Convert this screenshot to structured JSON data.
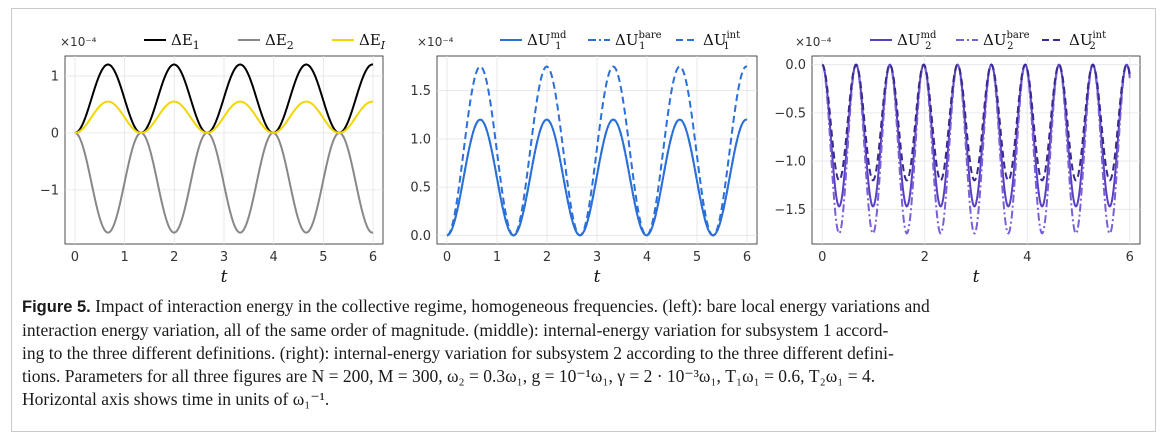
{
  "figure": {
    "caption_label": "Figure 5.",
    "caption_lines": [
      "Impact of interaction energy in the collective regime, homogeneous frequencies. (left): bare local energy variations and",
      "interaction energy variation, all of the same order of magnitude. (middle): internal-energy variation for subsystem 1 accord-",
      "ing to the three different definitions. (right): internal-energy variation for subsystem 2 according to the three different defini-",
      "tions. Parameters for all three figures are N = 200, M = 300, ω₂ = 0.3ω₁, g = 10⁻¹ω₁, γ = 2 · 10⁻³ω₁, T₁ω₁ = 0.6, T₂ω₁ = 4.",
      "Horizontal axis shows time in units of ω₁⁻¹."
    ]
  },
  "chart_data": [
    {
      "type": "line",
      "panel": "left",
      "xlabel": "t",
      "ylabel": "",
      "multiplier": "×10⁻⁴",
      "xlim": [
        -0.2,
        6.2
      ],
      "ylim": [
        -1.95,
        1.35
      ],
      "xticks": [
        0,
        1,
        2,
        3,
        4,
        5,
        6
      ],
      "yticks": [
        -1,
        0,
        1
      ],
      "grid": true,
      "legend_position": "top",
      "period": 1.33,
      "series": [
        {
          "name": "ΔE₁",
          "color": "#000000",
          "dash": "solid",
          "min": 0,
          "max": 1.2,
          "shape": "rise"
        },
        {
          "name": "ΔE₂",
          "color": "#888888",
          "dash": "solid",
          "min": -1.75,
          "max": 0,
          "shape": "fall"
        },
        {
          "name": "ΔE_I",
          "color": "#f2d600",
          "dash": "solid",
          "min": 0,
          "max": 0.55,
          "shape": "rise"
        }
      ],
      "legend_items": [
        "ΔE",
        "1",
        "ΔE",
        "2",
        "ΔE",
        "I"
      ]
    },
    {
      "type": "line",
      "panel": "middle",
      "xlabel": "t",
      "ylabel": "",
      "multiplier": "×10⁻⁴",
      "xlim": [
        -0.2,
        6.2
      ],
      "ylim": [
        -0.09,
        1.86
      ],
      "xticks": [
        0,
        1,
        2,
        3,
        4,
        5,
        6
      ],
      "yticks": [
        0.0,
        0.5,
        1.0,
        1.5
      ],
      "ytick_labels": [
        "0.0",
        "0.5",
        "1.0",
        "1.5"
      ],
      "grid": true,
      "legend_position": "top",
      "period": 1.33,
      "series": [
        {
          "name": "ΔU₁^md",
          "color": "#2b6fd8",
          "dash": "solid",
          "min": 0,
          "max": 1.2,
          "shape": "rise"
        },
        {
          "name": "ΔU₁^bare",
          "color": "#2b6fd8",
          "dash": "dashdot",
          "min": 0,
          "max": 1.2,
          "shape": "rise"
        },
        {
          "name": "ΔU₁^int",
          "color": "#2b6fd8",
          "dash": "dashed",
          "min": 0,
          "max": 1.75,
          "shape": "rise"
        }
      ],
      "legend_items": [
        "ΔU",
        "1",
        "md",
        "ΔU",
        "1",
        "bare",
        "ΔU",
        "1",
        "int"
      ]
    },
    {
      "type": "line",
      "panel": "right",
      "xlabel": "t",
      "ylabel": "",
      "multiplier": "×10⁻⁴",
      "xlim": [
        -0.2,
        6.2
      ],
      "ylim": [
        -1.86,
        0.09
      ],
      "xticks": [
        0,
        2,
        4,
        6
      ],
      "yticks": [
        0.0,
        -0.5,
        -1.0,
        -1.5
      ],
      "ytick_labels": [
        "0.0",
        "−0.5",
        "−1.0",
        "−1.5"
      ],
      "grid": true,
      "legend_position": "top",
      "period": 0.66,
      "series": [
        {
          "name": "ΔU₂^md",
          "color": "#5a3fc0",
          "dash": "solid",
          "min": -1.47,
          "max": 0,
          "shape": "fall"
        },
        {
          "name": "ΔU₂^bare",
          "color": "#7a5fd8",
          "dash": "dashdot",
          "min": -1.75,
          "max": 0,
          "shape": "fall"
        },
        {
          "name": "ΔU₂^int",
          "color": "#3a2a90",
          "dash": "dashed",
          "min": -1.2,
          "max": 0,
          "shape": "fall"
        }
      ],
      "legend_items": [
        "ΔU",
        "2",
        "md",
        "ΔU",
        "2",
        "bare",
        "ΔU",
        "2",
        "int"
      ]
    }
  ]
}
